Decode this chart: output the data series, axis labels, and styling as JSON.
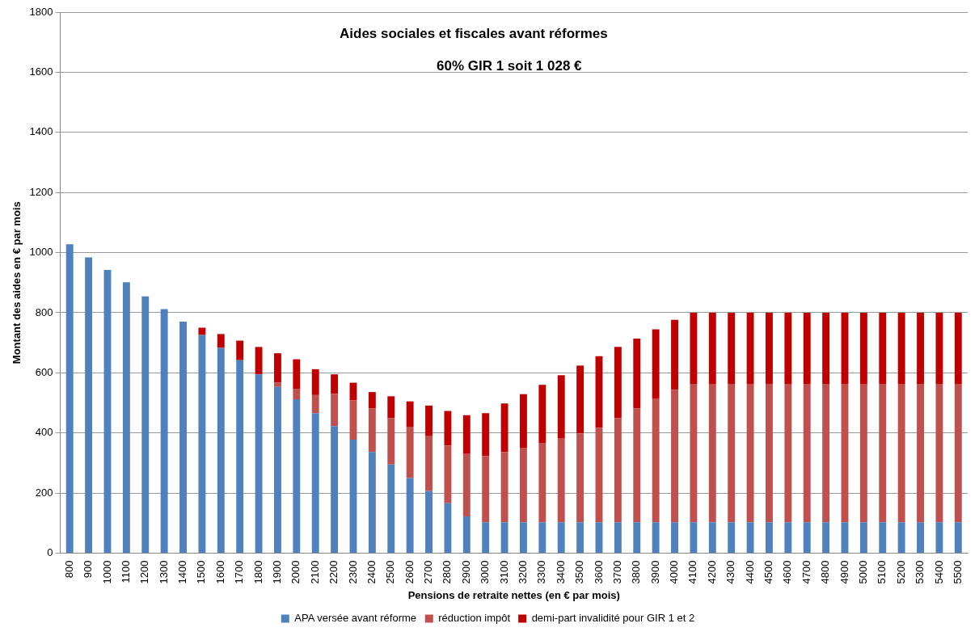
{
  "chart_data": {
    "type": "bar",
    "title": "Aides sociales et fiscales avant réformes",
    "subtitle": "60% GIR 1 soit  1 028 €",
    "xlabel": "Pensions de retraite nettes (en € par mois)",
    "ylabel": "Montant des aides en € par mois",
    "categories": [
      "800",
      "900",
      "1000",
      "1100",
      "1200",
      "1300",
      "1400",
      "1500",
      "1600",
      "1700",
      "1800",
      "1900",
      "2000",
      "2100",
      "2200",
      "2300",
      "2400",
      "2500",
      "2600",
      "2700",
      "2800",
      "2900",
      "3000",
      "3100",
      "3200",
      "3300",
      "3400",
      "3500",
      "3600",
      "3700",
      "3800",
      "3900",
      "4000",
      "4100",
      "4200",
      "4300",
      "4400",
      "4500",
      "4600",
      "4700",
      "4800",
      "4900",
      "5000",
      "5100",
      "5200",
      "5300",
      "5400",
      "5500"
    ],
    "stacked": true,
    "series": [
      {
        "name": "APA versée avant réforme",
        "color": "#4f81bd",
        "values": [
          1028,
          984,
          942,
          901,
          854,
          812,
          770,
          726,
          683,
          642,
          595,
          553,
          512,
          466,
          423,
          378,
          337,
          295,
          250,
          207,
          166,
          122,
          103,
          103,
          103,
          103,
          103,
          103,
          103,
          103,
          103,
          103,
          103,
          103,
          103,
          103,
          103,
          103,
          103,
          103,
          103,
          103,
          103,
          103,
          103,
          103,
          103,
          103
        ]
      },
      {
        "name": "réduction impôt",
        "color": "#c0504d",
        "values": [
          null,
          null,
          null,
          null,
          null,
          null,
          null,
          null,
          null,
          null,
          null,
          14,
          35,
          60,
          107,
          130,
          145,
          154,
          171,
          182,
          192,
          208,
          220,
          234,
          248,
          264,
          278,
          295,
          314,
          346,
          378,
          410,
          441,
          460,
          460,
          460,
          460,
          460,
          460,
          460,
          460,
          460,
          460,
          460,
          460,
          460,
          460,
          460
        ]
      },
      {
        "name": "demi-part invalidité pour GIR 1 et 2",
        "color": "#c00000",
        "values": [
          null,
          null,
          null,
          null,
          null,
          null,
          null,
          24,
          46,
          65,
          91,
          98,
          98,
          86,
          65,
          59,
          54,
          73,
          84,
          102,
          115,
          129,
          143,
          161,
          178,
          193,
          211,
          226,
          238,
          237,
          233,
          232,
          232,
          237,
          237,
          237,
          237,
          237,
          237,
          237,
          237,
          237,
          237,
          237,
          237,
          237,
          237,
          237
        ]
      }
    ],
    "ylim": [
      0,
      1800
    ],
    "yticks": [
      0,
      200,
      400,
      600,
      800,
      1000,
      1200,
      1400,
      1600,
      1800
    ],
    "grid": "y",
    "legend": "bottom"
  }
}
